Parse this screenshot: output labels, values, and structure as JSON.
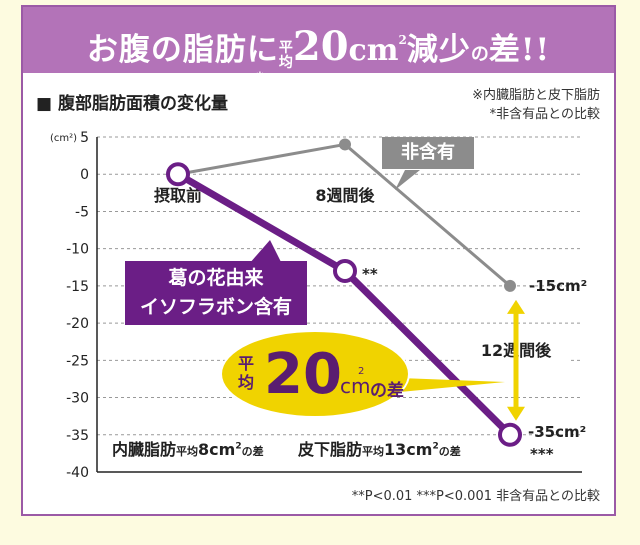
{
  "banner": {
    "part1": "お腹の脂肪に",
    "mark": "※",
    "heikin_top": "平",
    "heikin_bottom": "均",
    "value": "20",
    "unit": "cm",
    "unit_sup": "2",
    "part2": "減少",
    "no": "の",
    "sa": "差!!"
  },
  "header": {
    "title": "■ 腹部脂肪面積の変化量",
    "note1": "※内臓脂肪と皮下脂肪",
    "note2": "*非含有品との比較"
  },
  "colors": {
    "purple": "#6b1e86",
    "grey": "#8c8c8c",
    "yellow": "#f0d300",
    "banner": "#b373b8"
  },
  "chart_data": {
    "type": "line",
    "y_unit_label": "(cm²)",
    "ylim": [
      -40,
      5
    ],
    "yticks": [
      5,
      0,
      -5,
      -10,
      -15,
      -20,
      -25,
      -30,
      -35,
      -40
    ],
    "categories": [
      "摂取前",
      "8週間後",
      "12週間後"
    ],
    "series": [
      {
        "name": "非含有",
        "values": [
          0,
          4,
          -15
        ],
        "color": "#8c8c8c"
      },
      {
        "name": "葛の花由来 イソフラボン含有",
        "values": [
          0,
          -13,
          -35
        ],
        "color": "#6b1e86"
      }
    ],
    "annotations": {
      "mid_sig": "**",
      "end_sig": "***",
      "grey_end": "-15cm²",
      "purple_end": "-35cm²",
      "diff_label_pre": "平均",
      "diff_value": "20",
      "diff_unit": "cm",
      "diff_unit_sup": "2",
      "diff_suffix": "の差"
    }
  },
  "callouts": {
    "placebo": "非含有",
    "active_line1": "葛の花由来",
    "active_line2": "イソフラボン含有"
  },
  "bottom_labels": {
    "visceral": "内臓脂肪",
    "visceral_heikin": "平均",
    "visceral_value": "8cm",
    "visceral_sup": "2",
    "visceral_sa": "の差",
    "subq": "皮下脂肪",
    "subq_heikin": "平均",
    "subq_value": "13cm",
    "subq_sup": "2",
    "subq_sa": "の差"
  },
  "footnote": "**P<0.01 ***P<0.001 非含有品との比較"
}
